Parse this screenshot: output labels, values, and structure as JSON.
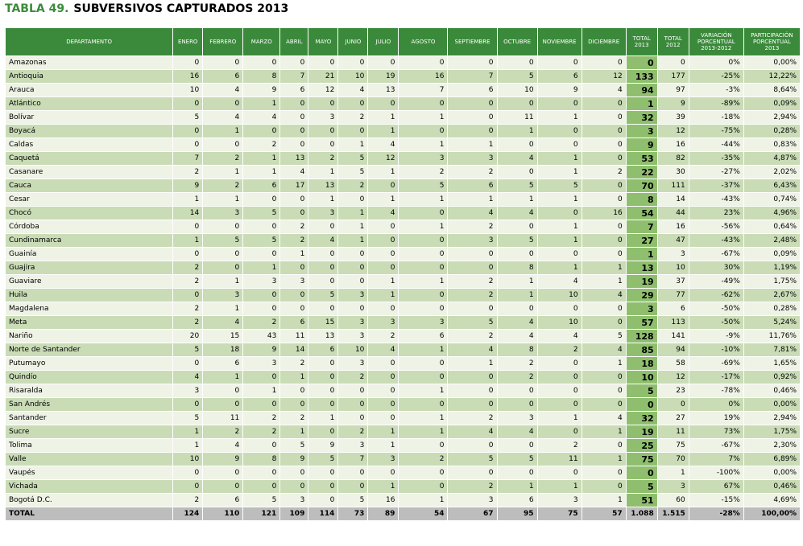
{
  "header": {
    "label": "TABLA 49.",
    "title": "SUBVERSIVOS CAPTURADOS 2013"
  },
  "table": {
    "columns": [
      "DEPARTAMENTO",
      "ENERO",
      "FEBRERO",
      "MARZO",
      "ABRIL",
      "MAYO",
      "JUNIO",
      "JULIO",
      "AGOSTO",
      "SEPTIEMBRE",
      "OCTUBRE",
      "NOVIEMBRE",
      "DICIEMBRE",
      "TOTAL 2013",
      "TOTAL 2012",
      "VARIACIÓN PORCENTUAL 2013-2012",
      "PARTICIPACIÓN PORCENTUAL 2013"
    ],
    "rows": [
      [
        "Amazonas",
        0,
        0,
        0,
        0,
        0,
        0,
        0,
        0,
        0,
        0,
        0,
        0,
        0,
        0,
        "0%",
        "0,00%"
      ],
      [
        "Antioquia",
        16,
        6,
        8,
        7,
        21,
        10,
        19,
        16,
        7,
        5,
        6,
        12,
        133,
        177,
        "-25%",
        "12,22%"
      ],
      [
        "Arauca",
        10,
        4,
        9,
        6,
        12,
        4,
        13,
        7,
        6,
        10,
        9,
        4,
        94,
        97,
        "-3%",
        "8,64%"
      ],
      [
        "Atlántico",
        0,
        0,
        1,
        0,
        0,
        0,
        0,
        0,
        0,
        0,
        0,
        0,
        1,
        9,
        "-89%",
        "0,09%"
      ],
      [
        "Bolívar",
        5,
        4,
        4,
        0,
        3,
        2,
        1,
        1,
        0,
        11,
        1,
        0,
        32,
        39,
        "-18%",
        "2,94%"
      ],
      [
        "Boyacá",
        0,
        1,
        0,
        0,
        0,
        0,
        1,
        0,
        0,
        1,
        0,
        0,
        3,
        12,
        "-75%",
        "0,28%"
      ],
      [
        "Caldas",
        0,
        0,
        2,
        0,
        0,
        1,
        4,
        1,
        1,
        0,
        0,
        0,
        9,
        16,
        "-44%",
        "0,83%"
      ],
      [
        "Caquetá",
        7,
        2,
        1,
        13,
        2,
        5,
        12,
        3,
        3,
        4,
        1,
        0,
        53,
        82,
        "-35%",
        "4,87%"
      ],
      [
        "Casanare",
        2,
        1,
        1,
        4,
        1,
        5,
        1,
        2,
        2,
        0,
        1,
        2,
        22,
        30,
        "-27%",
        "2,02%"
      ],
      [
        "Cauca",
        9,
        2,
        6,
        17,
        13,
        2,
        0,
        5,
        6,
        5,
        5,
        0,
        70,
        111,
        "-37%",
        "6,43%"
      ],
      [
        "Cesar",
        1,
        1,
        0,
        0,
        1,
        0,
        1,
        1,
        1,
        1,
        1,
        0,
        8,
        14,
        "-43%",
        "0,74%"
      ],
      [
        "Chocó",
        14,
        3,
        5,
        0,
        3,
        1,
        4,
        0,
        4,
        4,
        0,
        16,
        54,
        44,
        "23%",
        "4,96%"
      ],
      [
        "Córdoba",
        0,
        0,
        0,
        2,
        0,
        1,
        0,
        1,
        2,
        0,
        1,
        0,
        7,
        16,
        "-56%",
        "0,64%"
      ],
      [
        "Cundinamarca",
        1,
        5,
        5,
        2,
        4,
        1,
        0,
        0,
        3,
        5,
        1,
        0,
        27,
        47,
        "-43%",
        "2,48%"
      ],
      [
        "Guainía",
        0,
        0,
        0,
        1,
        0,
        0,
        0,
        0,
        0,
        0,
        0,
        0,
        1,
        3,
        "-67%",
        "0,09%"
      ],
      [
        "Guajira",
        2,
        0,
        1,
        0,
        0,
        0,
        0,
        0,
        0,
        8,
        1,
        1,
        13,
        10,
        "30%",
        "1,19%"
      ],
      [
        "Guaviare",
        2,
        1,
        3,
        3,
        0,
        0,
        1,
        1,
        2,
        1,
        4,
        1,
        19,
        37,
        "-49%",
        "1,75%"
      ],
      [
        "Huila",
        0,
        3,
        0,
        0,
        5,
        3,
        1,
        0,
        2,
        1,
        10,
        4,
        29,
        77,
        "-62%",
        "2,67%"
      ],
      [
        "Magdalena",
        2,
        1,
        0,
        0,
        0,
        0,
        0,
        0,
        0,
        0,
        0,
        0,
        3,
        6,
        "-50%",
        "0,28%"
      ],
      [
        "Meta",
        2,
        4,
        2,
        6,
        15,
        3,
        3,
        3,
        5,
        4,
        10,
        0,
        57,
        113,
        "-50%",
        "5,24%"
      ],
      [
        "Nariño",
        20,
        15,
        43,
        11,
        13,
        3,
        2,
        6,
        2,
        4,
        4,
        5,
        128,
        141,
        "-9%",
        "11,76%"
      ],
      [
        "Norte de Santander",
        5,
        18,
        9,
        14,
        6,
        10,
        4,
        1,
        4,
        8,
        2,
        4,
        85,
        94,
        "-10%",
        "7,81%"
      ],
      [
        "Putumayo",
        0,
        6,
        3,
        2,
        0,
        3,
        0,
        0,
        1,
        2,
        0,
        1,
        18,
        58,
        "-69%",
        "1,65%"
      ],
      [
        "Quindío",
        4,
        1,
        0,
        1,
        0,
        2,
        0,
        0,
        0,
        2,
        0,
        0,
        10,
        12,
        "-17%",
        "0,92%"
      ],
      [
        "Risaralda",
        3,
        0,
        1,
        0,
        0,
        0,
        0,
        1,
        0,
        0,
        0,
        0,
        5,
        23,
        "-78%",
        "0,46%"
      ],
      [
        "San Andrés",
        0,
        0,
        0,
        0,
        0,
        0,
        0,
        0,
        0,
        0,
        0,
        0,
        0,
        0,
        "0%",
        "0,00%"
      ],
      [
        "Santander",
        5,
        11,
        2,
        2,
        1,
        0,
        0,
        1,
        2,
        3,
        1,
        4,
        32,
        27,
        "19%",
        "2,94%"
      ],
      [
        "Sucre",
        1,
        2,
        2,
        1,
        0,
        2,
        1,
        1,
        4,
        4,
        0,
        1,
        19,
        11,
        "73%",
        "1,75%"
      ],
      [
        "Tolima",
        1,
        4,
        0,
        5,
        9,
        3,
        1,
        0,
        0,
        0,
        2,
        0,
        25,
        75,
        "-67%",
        "2,30%"
      ],
      [
        "Valle",
        10,
        9,
        8,
        9,
        5,
        7,
        3,
        2,
        5,
        5,
        11,
        1,
        75,
        70,
        "7%",
        "6,89%"
      ],
      [
        "Vaupés",
        0,
        0,
        0,
        0,
        0,
        0,
        0,
        0,
        0,
        0,
        0,
        0,
        0,
        1,
        "-100%",
        "0,00%"
      ],
      [
        "Vichada",
        0,
        0,
        0,
        0,
        0,
        0,
        1,
        0,
        2,
        1,
        1,
        0,
        5,
        3,
        "67%",
        "0,46%"
      ],
      [
        "Bogotá D.C.",
        2,
        6,
        5,
        3,
        0,
        5,
        16,
        1,
        3,
        6,
        3,
        1,
        51,
        60,
        "-15%",
        "4,69%"
      ]
    ],
    "total": [
      "TOTAL",
      124,
      110,
      121,
      109,
      114,
      73,
      89,
      54,
      67,
      95,
      75,
      57,
      "1.088",
      "1.515",
      "-28%",
      "100,00%"
    ]
  }
}
